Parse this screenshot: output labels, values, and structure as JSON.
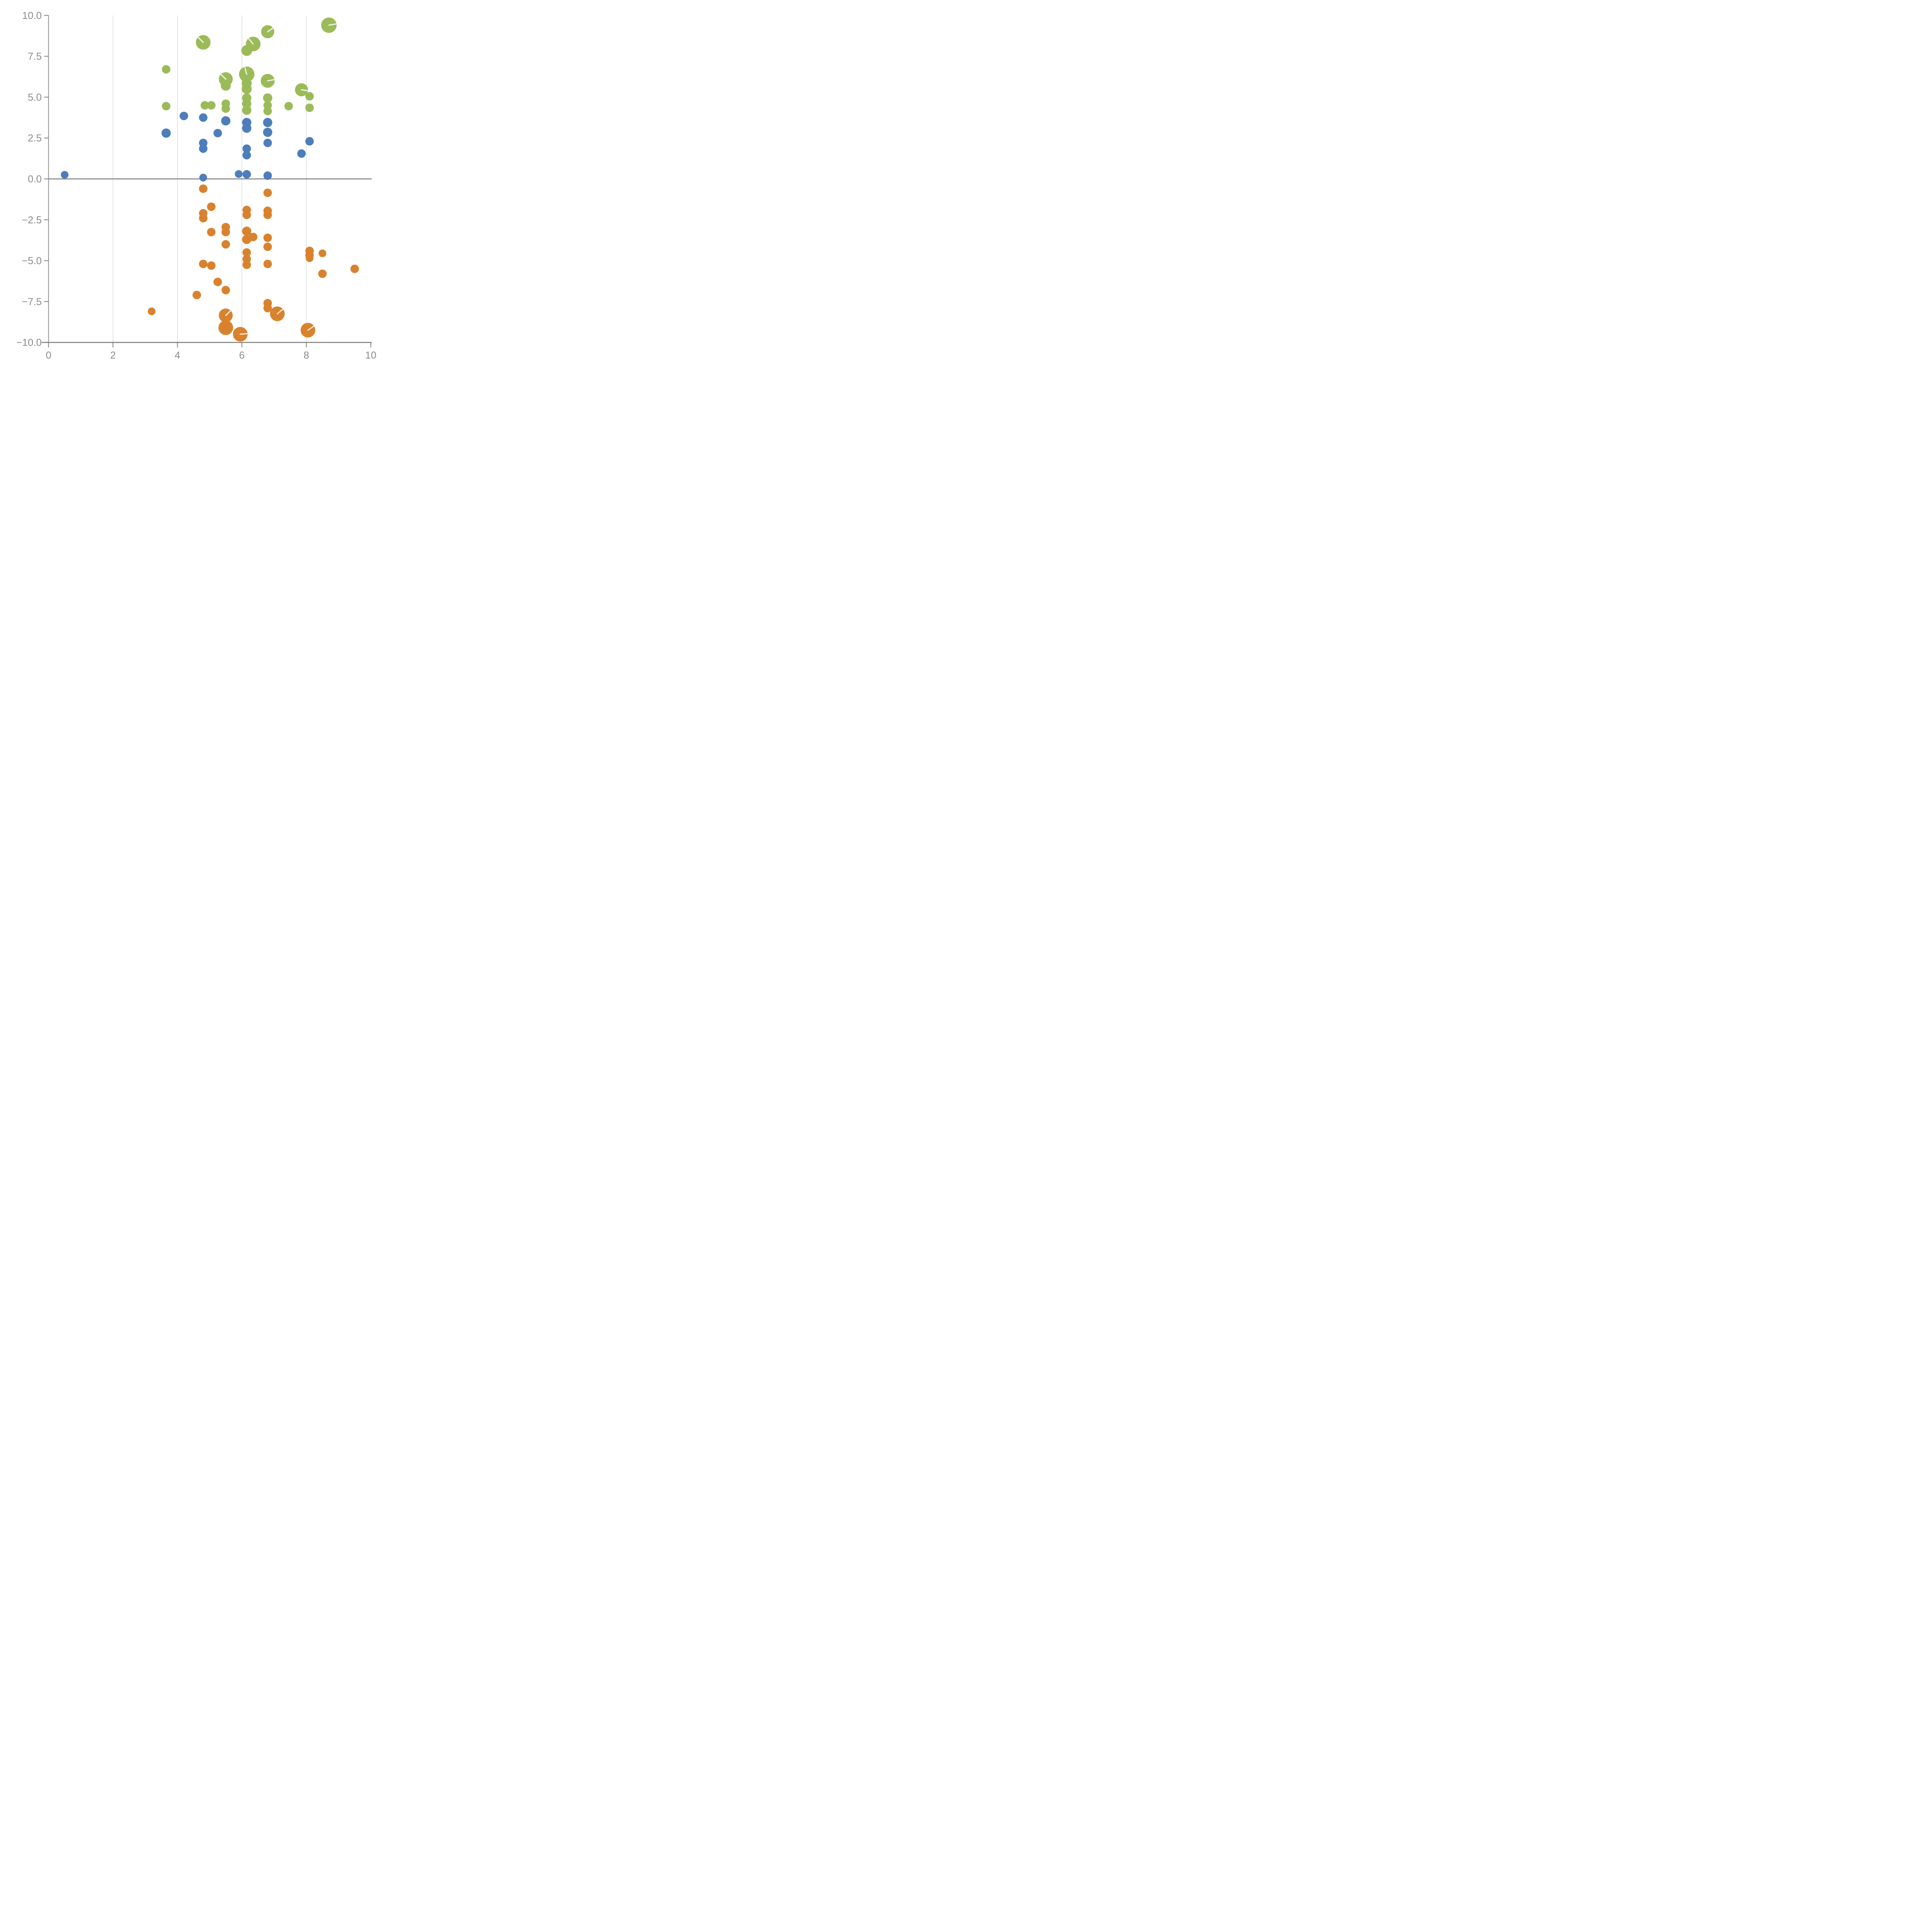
{
  "chart_data": {
    "type": "scatter",
    "subtype": "bubble",
    "title": "",
    "xlabel": "",
    "ylabel": "",
    "grid": "vertical-only",
    "legend": "none",
    "x_axis": {
      "range": [
        0,
        10
      ],
      "tick_values": [
        0,
        2,
        4,
        6,
        8,
        10
      ],
      "tick_labels": [
        "0",
        "2",
        "4",
        "6",
        "8",
        "10"
      ],
      "gridline_values": [
        2,
        4,
        6,
        8
      ]
    },
    "y_axis": {
      "range": [
        -10,
        10
      ],
      "tick_values": [
        10,
        7.5,
        5,
        2.5,
        0,
        -2.5,
        -5,
        -7.5,
        -10
      ],
      "tick_labels": [
        "10.0",
        "7.5",
        "5.0",
        "2.5",
        "0.0",
        "−2.5",
        "−5.0",
        "−7.5",
        "−10.0"
      ],
      "zero_line": true
    },
    "colors": {
      "green": "#9bbb59",
      "blue": "#4d7ebb",
      "orange": "#d9822e",
      "axis": "#7f7f7f",
      "spine": "#8f8f8f",
      "gridline": "#c9c9c9",
      "tick_text": "#8c8c8c",
      "slash": "rgba(255,255,255,0.85)"
    },
    "series": [
      {
        "name": "green",
        "color": "#9bbb59",
        "points": [
          {
            "x": 3.65,
            "y": 6.7,
            "r": 11
          },
          {
            "x": 4.8,
            "y": 8.35,
            "r": 19,
            "slash": 135
          },
          {
            "x": 6.8,
            "y": 9.0,
            "r": 17,
            "slash": 35
          },
          {
            "x": 6.35,
            "y": 8.25,
            "r": 19,
            "slash": 130
          },
          {
            "x": 6.15,
            "y": 7.85,
            "r": 14
          },
          {
            "x": 8.7,
            "y": 9.4,
            "r": 20,
            "slash": 10
          },
          {
            "x": 5.5,
            "y": 6.1,
            "r": 18,
            "slash": 135
          },
          {
            "x": 5.5,
            "y": 5.7,
            "r": 13
          },
          {
            "x": 6.15,
            "y": 6.4,
            "r": 20,
            "slash": 105
          },
          {
            "x": 6.15,
            "y": 5.85,
            "r": 13
          },
          {
            "x": 6.15,
            "y": 5.5,
            "r": 13
          },
          {
            "x": 6.15,
            "y": 4.95,
            "r": 12
          },
          {
            "x": 6.15,
            "y": 4.6,
            "r": 12
          },
          {
            "x": 6.15,
            "y": 4.2,
            "r": 12
          },
          {
            "x": 6.8,
            "y": 6.0,
            "r": 18,
            "slash": 10
          },
          {
            "x": 6.8,
            "y": 4.95,
            "r": 12
          },
          {
            "x": 6.8,
            "y": 4.5,
            "r": 11
          },
          {
            "x": 6.8,
            "y": 4.15,
            "r": 11
          },
          {
            "x": 7.85,
            "y": 5.45,
            "r": 17,
            "slash": -8
          },
          {
            "x": 8.1,
            "y": 5.05,
            "r": 11
          },
          {
            "x": 8.1,
            "y": 4.35,
            "r": 11
          },
          {
            "x": 7.45,
            "y": 4.45,
            "r": 11
          },
          {
            "x": 3.65,
            "y": 4.45,
            "r": 11
          },
          {
            "x": 4.85,
            "y": 4.5,
            "r": 11
          },
          {
            "x": 5.05,
            "y": 4.5,
            "r": 11
          },
          {
            "x": 5.5,
            "y": 4.6,
            "r": 11
          },
          {
            "x": 5.5,
            "y": 4.3,
            "r": 11
          }
        ]
      },
      {
        "name": "blue",
        "color": "#4d7ebb",
        "points": [
          {
            "x": 0.5,
            "y": 0.25,
            "r": 10
          },
          {
            "x": 4.2,
            "y": 3.85,
            "r": 11
          },
          {
            "x": 4.8,
            "y": 3.75,
            "r": 11
          },
          {
            "x": 3.65,
            "y": 2.8,
            "r": 12
          },
          {
            "x": 5.25,
            "y": 2.8,
            "r": 11
          },
          {
            "x": 5.5,
            "y": 3.55,
            "r": 12
          },
          {
            "x": 6.15,
            "y": 3.45,
            "r": 12
          },
          {
            "x": 6.15,
            "y": 3.1,
            "r": 12
          },
          {
            "x": 6.8,
            "y": 3.45,
            "r": 12
          },
          {
            "x": 6.8,
            "y": 2.85,
            "r": 12
          },
          {
            "x": 6.8,
            "y": 2.2,
            "r": 11
          },
          {
            "x": 4.8,
            "y": 2.2,
            "r": 11
          },
          {
            "x": 4.8,
            "y": 1.85,
            "r": 11
          },
          {
            "x": 8.1,
            "y": 2.3,
            "r": 11
          },
          {
            "x": 6.15,
            "y": 1.85,
            "r": 11
          },
          {
            "x": 6.15,
            "y": 1.45,
            "r": 11
          },
          {
            "x": 7.85,
            "y": 1.55,
            "r": 11
          },
          {
            "x": 5.9,
            "y": 0.3,
            "r": 10
          },
          {
            "x": 6.15,
            "y": 0.28,
            "r": 11
          },
          {
            "x": 4.8,
            "y": 0.08,
            "r": 10
          },
          {
            "x": 6.8,
            "y": 0.2,
            "r": 11
          }
        ]
      },
      {
        "name": "orange",
        "color": "#d9822e",
        "points": [
          {
            "x": 4.8,
            "y": -0.6,
            "r": 11
          },
          {
            "x": 6.8,
            "y": -0.85,
            "r": 11
          },
          {
            "x": 5.05,
            "y": -1.7,
            "r": 11
          },
          {
            "x": 4.8,
            "y": -2.1,
            "r": 11
          },
          {
            "x": 4.8,
            "y": -2.4,
            "r": 11
          },
          {
            "x": 6.15,
            "y": -1.9,
            "r": 11
          },
          {
            "x": 6.15,
            "y": -2.2,
            "r": 11
          },
          {
            "x": 6.8,
            "y": -1.95,
            "r": 11
          },
          {
            "x": 6.8,
            "y": -2.2,
            "r": 11
          },
          {
            "x": 5.5,
            "y": -2.95,
            "r": 11
          },
          {
            "x": 5.5,
            "y": -3.25,
            "r": 11
          },
          {
            "x": 5.05,
            "y": -3.25,
            "r": 11
          },
          {
            "x": 6.15,
            "y": -3.2,
            "r": 12
          },
          {
            "x": 6.15,
            "y": -3.7,
            "r": 12
          },
          {
            "x": 6.35,
            "y": -3.55,
            "r": 11
          },
          {
            "x": 6.8,
            "y": -3.6,
            "r": 11
          },
          {
            "x": 5.5,
            "y": -4.0,
            "r": 11
          },
          {
            "x": 6.8,
            "y": -4.15,
            "r": 11
          },
          {
            "x": 6.15,
            "y": -4.5,
            "r": 11
          },
          {
            "x": 6.15,
            "y": -4.9,
            "r": 11
          },
          {
            "x": 6.15,
            "y": -5.25,
            "r": 11
          },
          {
            "x": 8.1,
            "y": -4.4,
            "r": 11
          },
          {
            "x": 8.1,
            "y": -4.65,
            "r": 11
          },
          {
            "x": 8.1,
            "y": -4.85,
            "r": 10
          },
          {
            "x": 8.5,
            "y": -4.55,
            "r": 10
          },
          {
            "x": 4.8,
            "y": -5.2,
            "r": 11
          },
          {
            "x": 5.05,
            "y": -5.3,
            "r": 11
          },
          {
            "x": 6.8,
            "y": -5.2,
            "r": 11
          },
          {
            "x": 9.5,
            "y": -5.5,
            "r": 11
          },
          {
            "x": 8.5,
            "y": -5.8,
            "r": 11
          },
          {
            "x": 5.25,
            "y": -6.3,
            "r": 11
          },
          {
            "x": 5.5,
            "y": -6.8,
            "r": 11
          },
          {
            "x": 4.6,
            "y": -7.1,
            "r": 11
          },
          {
            "x": 6.8,
            "y": -7.6,
            "r": 11
          },
          {
            "x": 6.8,
            "y": -7.9,
            "r": 11
          },
          {
            "x": 3.2,
            "y": -8.1,
            "r": 10
          },
          {
            "x": 7.1,
            "y": -8.25,
            "r": 19,
            "slash": 40
          },
          {
            "x": 5.5,
            "y": -8.35,
            "r": 18,
            "slash": 45
          },
          {
            "x": 5.5,
            "y": -9.1,
            "r": 19
          },
          {
            "x": 5.95,
            "y": -9.5,
            "r": 19,
            "slash": 5
          },
          {
            "x": 8.05,
            "y": -9.25,
            "r": 19,
            "slash": 35
          }
        ]
      }
    ]
  }
}
